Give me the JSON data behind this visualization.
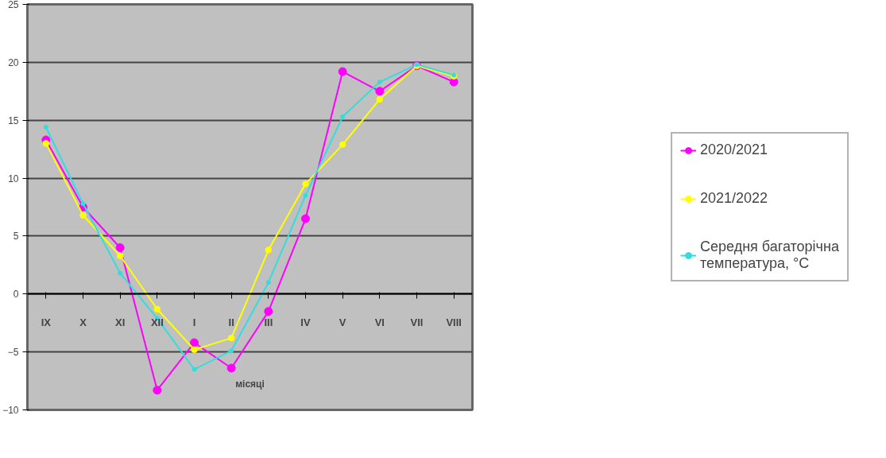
{
  "chart_data": {
    "type": "line",
    "xlabel": "місяці",
    "categories": [
      "IX",
      "X",
      "XI",
      "XII",
      "I",
      "II",
      "III",
      "IV",
      "V",
      "VI",
      "VII",
      "VIII"
    ],
    "series": [
      {
        "name": "2020/2021",
        "color": "#ff00ff",
        "values": [
          13.3,
          7.5,
          4.0,
          -8.3,
          -4.2,
          -6.4,
          -1.5,
          6.5,
          19.2,
          17.5,
          19.7,
          18.3
        ]
      },
      {
        "name": "2021/2022",
        "color": "#ffff00",
        "values": [
          13.0,
          6.8,
          3.3,
          -1.3,
          -4.8,
          -3.8,
          3.8,
          9.5,
          12.9,
          16.8,
          19.7,
          18.8
        ]
      },
      {
        "name": "Середня багаторічна температура, °C",
        "color": "#33dddd",
        "values": [
          14.4,
          7.8,
          1.8,
          -2.1,
          -6.5,
          -4.9,
          1.0,
          8.5,
          15.3,
          18.3,
          19.8,
          18.9
        ]
      }
    ],
    "ylim": [
      -10,
      25
    ],
    "yticks": [
      -10,
      -5,
      0,
      5,
      10,
      15,
      20,
      25
    ],
    "grid": "y",
    "legend": "right",
    "marker": "circle",
    "line_style": "solid"
  }
}
